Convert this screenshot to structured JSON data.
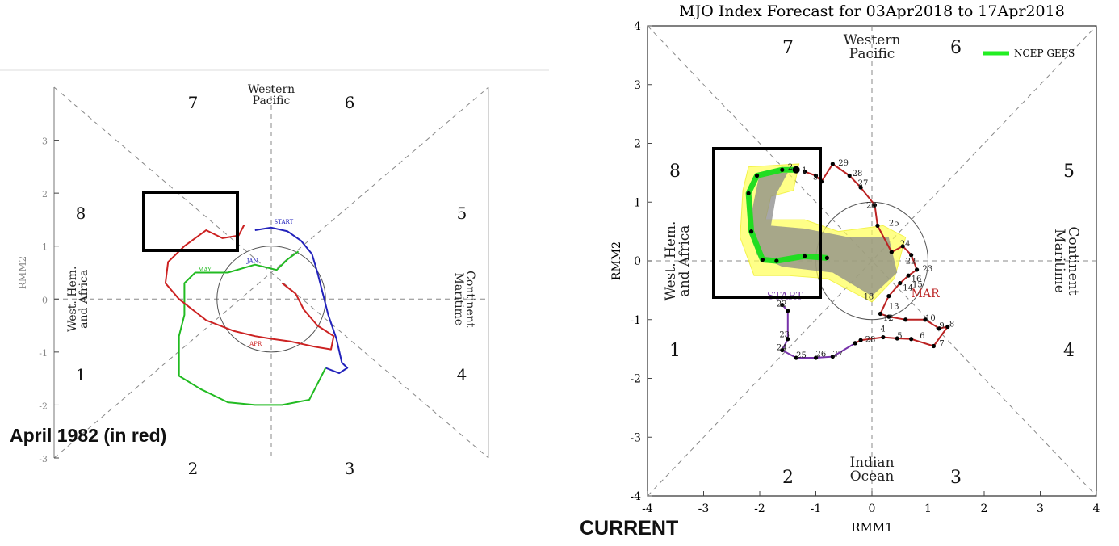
{
  "captions": {
    "left": "April 1982 (in red)",
    "right": "CURRENT"
  },
  "chart_data": [
    {
      "type": "scatter",
      "subtype": "mjo-phase-diagram",
      "title": "",
      "xlabel": "",
      "ylabel": "RMM2",
      "xlim": [
        -4,
        4
      ],
      "ylim": [
        -3,
        4
      ],
      "y_ticks": [
        "-3",
        "-2",
        "-1",
        "0",
        "1",
        "2",
        "3"
      ],
      "phase_numbers": [
        "1",
        "2",
        "3",
        "4",
        "5",
        "6",
        "7",
        "8"
      ],
      "region_labels": {
        "top": [
          "Western",
          "Pacific"
        ],
        "left": [
          "West. Hem.",
          "and Africa"
        ],
        "right": [
          "Maritime",
          "Continent"
        ]
      },
      "start_label": "START",
      "series": [
        {
          "name": "JAN",
          "color": "#2222bb",
          "points": [
            [
              -0.3,
              1.3
            ],
            [
              0.0,
              1.35
            ],
            [
              0.3,
              1.28
            ],
            [
              0.55,
              1.1
            ],
            [
              0.75,
              0.85
            ],
            [
              0.85,
              0.5
            ],
            [
              0.95,
              0.1
            ],
            [
              1.05,
              -0.3
            ],
            [
              1.2,
              -0.75
            ],
            [
              1.3,
              -1.2
            ],
            [
              1.4,
              -1.3
            ],
            [
              1.25,
              -1.4
            ],
            [
              1.0,
              -1.3
            ]
          ]
        },
        {
          "name": "",
          "color": "#22bb22",
          "points": [
            [
              1.0,
              -1.3
            ],
            [
              0.7,
              -1.9
            ],
            [
              0.2,
              -2.0
            ],
            [
              -0.3,
              -2.0
            ],
            [
              -0.8,
              -1.95
            ],
            [
              -1.3,
              -1.7
            ],
            [
              -1.7,
              -1.45
            ],
            [
              -1.7,
              -0.7
            ],
            [
              -1.6,
              -0.3
            ],
            [
              -1.6,
              0.3
            ],
            [
              -1.4,
              0.5
            ],
            [
              -0.8,
              0.5
            ],
            [
              -0.3,
              0.65
            ],
            [
              0.1,
              0.55
            ],
            [
              0.3,
              0.75
            ],
            [
              0.5,
              0.9
            ]
          ]
        },
        {
          "name": "APR",
          "color": "#cc2222",
          "points": [
            [
              -0.5,
              1.4
            ],
            [
              -0.6,
              1.2
            ],
            [
              -0.9,
              1.15
            ],
            [
              -1.2,
              1.3
            ],
            [
              -1.6,
              1.0
            ],
            [
              -1.9,
              0.7
            ],
            [
              -1.95,
              0.3
            ],
            [
              -1.7,
              0.0
            ],
            [
              -1.2,
              -0.4
            ],
            [
              -0.7,
              -0.6
            ],
            [
              -0.3,
              -0.7
            ],
            [
              0.0,
              -0.75
            ],
            [
              0.35,
              -0.8
            ],
            [
              0.8,
              -0.9
            ],
            [
              1.1,
              -0.95
            ],
            [
              1.15,
              -0.7
            ],
            [
              0.85,
              -0.5
            ],
            [
              0.6,
              -0.2
            ],
            [
              0.45,
              0.1
            ],
            [
              0.2,
              0.3
            ]
          ]
        }
      ],
      "point_labels": [
        {
          "text": "START",
          "x": 0.05,
          "y": 1.42,
          "color": "#2222bb"
        },
        {
          "text": "JAN",
          "x": -0.45,
          "y": 0.68,
          "color": "#2222bb"
        },
        {
          "text": "APR",
          "x": -0.4,
          "y": -0.88,
          "color": "#cc2222"
        },
        {
          "text": "MAY",
          "x": -1.35,
          "y": 0.52,
          "color": "#22bb22"
        }
      ],
      "amplitude_circle_radius": 1
    },
    {
      "type": "scatter",
      "subtype": "mjo-phase-diagram",
      "title": "MJO Index Forecast for 03Apr2018 to 17Apr2018",
      "xlabel": "RMM1",
      "ylabel": "RMM2",
      "xlim": [
        -4,
        4
      ],
      "ylim": [
        -4,
        4
      ],
      "x_ticks": [
        "-4",
        "-3",
        "-2",
        "-1",
        "0",
        "1",
        "2",
        "3",
        "4"
      ],
      "y_ticks": [
        "-4",
        "-3",
        "-2",
        "-1",
        "0",
        "1",
        "2",
        "3",
        "4"
      ],
      "phase_numbers": [
        "1",
        "2",
        "3",
        "4",
        "5",
        "6",
        "7",
        "8"
      ],
      "region_labels": {
        "top": [
          "Western",
          "Pacific"
        ],
        "bottom": [
          "Indian",
          "Ocean"
        ],
        "left": [
          "West. Hem.",
          "and Africa"
        ],
        "right": [
          "Maritime",
          "Continent"
        ]
      },
      "legend": {
        "label": "NCEP GEFS",
        "color": "#22ee22",
        "position": "top-right"
      },
      "start_label": "START",
      "month_label": "MAR",
      "series": [
        {
          "name": "",
          "color": "#7733aa",
          "points": [
            [
              -1.6,
              -0.75
            ],
            [
              -1.5,
              -0.85
            ],
            [
              -1.5,
              -1.33
            ],
            [
              -1.6,
              -1.52
            ],
            [
              -1.35,
              -1.65
            ],
            [
              -1.0,
              -1.65
            ],
            [
              -0.7,
              -1.63
            ],
            [
              -0.3,
              -1.4
            ]
          ]
        },
        {
          "name": "",
          "color": "#bb2222",
          "points": [
            [
              -0.3,
              -1.4
            ],
            [
              -0.2,
              -1.35
            ],
            [
              0.2,
              -1.3
            ],
            [
              0.45,
              -1.32
            ],
            [
              0.7,
              -1.33
            ],
            [
              1.1,
              -1.45
            ],
            [
              1.35,
              -1.12
            ],
            [
              1.2,
              -1.15
            ],
            [
              0.95,
              -1.0
            ],
            [
              0.6,
              -1.0
            ],
            [
              0.3,
              -0.95
            ],
            [
              0.15,
              -0.9
            ],
            [
              0.3,
              -0.6
            ],
            [
              0.5,
              -0.38
            ],
            [
              0.65,
              -0.25
            ],
            [
              0.8,
              -0.15
            ],
            [
              0.7,
              0.1
            ],
            [
              0.55,
              0.25
            ],
            [
              0.35,
              0.15
            ],
            [
              0.1,
              0.6
            ],
            [
              0.05,
              0.95
            ],
            [
              -0.2,
              1.25
            ],
            [
              -0.4,
              1.45
            ],
            [
              -0.7,
              1.65
            ],
            [
              -0.9,
              1.35
            ],
            [
              -1.0,
              1.45
            ],
            [
              -1.2,
              1.52
            ]
          ]
        },
        {
          "name": "NCEP GEFS",
          "color": "#22dd22",
          "points": [
            [
              -1.35,
              1.55
            ],
            [
              -1.6,
              1.55
            ],
            [
              -2.05,
              1.45
            ],
            [
              -2.2,
              1.15
            ],
            [
              -2.15,
              0.5
            ],
            [
              -1.95,
              0.02
            ],
            [
              -1.7,
              0.0
            ],
            [
              -1.2,
              0.08
            ],
            [
              -0.8,
              0.05
            ]
          ]
        }
      ],
      "point_labels": [
        {
          "text": "29",
          "x": -0.6,
          "y": 1.62
        },
        {
          "text": "28",
          "x": -0.35,
          "y": 1.44
        },
        {
          "text": "27",
          "x": -0.25,
          "y": 1.28
        },
        {
          "text": "26",
          "x": -0.1,
          "y": 0.9
        },
        {
          "text": "25",
          "x": 0.3,
          "y": 0.6
        },
        {
          "text": "24",
          "x": 0.5,
          "y": 0.25
        },
        {
          "text": "22",
          "x": 0.6,
          "y": -0.05
        },
        {
          "text": "23",
          "x": 0.9,
          "y": -0.18
        },
        {
          "text": "16",
          "x": 0.7,
          "y": -0.35
        },
        {
          "text": "15",
          "x": 0.72,
          "y": -0.45
        },
        {
          "text": "14",
          "x": 0.55,
          "y": -0.5
        },
        {
          "text": "18",
          "x": -0.15,
          "y": -0.65
        },
        {
          "text": "13",
          "x": 0.3,
          "y": -0.82
        },
        {
          "text": "12",
          "x": 0.2,
          "y": -1.02
        },
        {
          "text": "10",
          "x": 0.95,
          "y": -1.02
        },
        {
          "text": "9",
          "x": 1.2,
          "y": -1.15
        },
        {
          "text": "8",
          "x": 1.38,
          "y": -1.12
        },
        {
          "text": "7",
          "x": 1.2,
          "y": -1.45
        },
        {
          "text": "6",
          "x": 0.85,
          "y": -1.32
        },
        {
          "text": "5",
          "x": 0.45,
          "y": -1.32
        },
        {
          "text": "4",
          "x": 0.15,
          "y": -1.2
        },
        {
          "text": "28",
          "x": -0.12,
          "y": -1.38
        },
        {
          "text": "27",
          "x": -0.7,
          "y": -1.63
        },
        {
          "text": "26",
          "x": -1.0,
          "y": -1.63
        },
        {
          "text": "25",
          "x": -1.35,
          "y": -1.65
        },
        {
          "text": "24",
          "x": -1.7,
          "y": -1.52
        },
        {
          "text": "23",
          "x": -1.65,
          "y": -1.3
        },
        {
          "text": "22",
          "x": -1.7,
          "y": -0.78
        },
        {
          "text": "31",
          "x": -1.05,
          "y": 1.38
        },
        {
          "text": "1",
          "x": -1.25,
          "y": 1.5
        },
        {
          "text": "2",
          "x": -1.5,
          "y": 1.55
        }
      ],
      "amplitude_circle_radius": 1
    }
  ]
}
